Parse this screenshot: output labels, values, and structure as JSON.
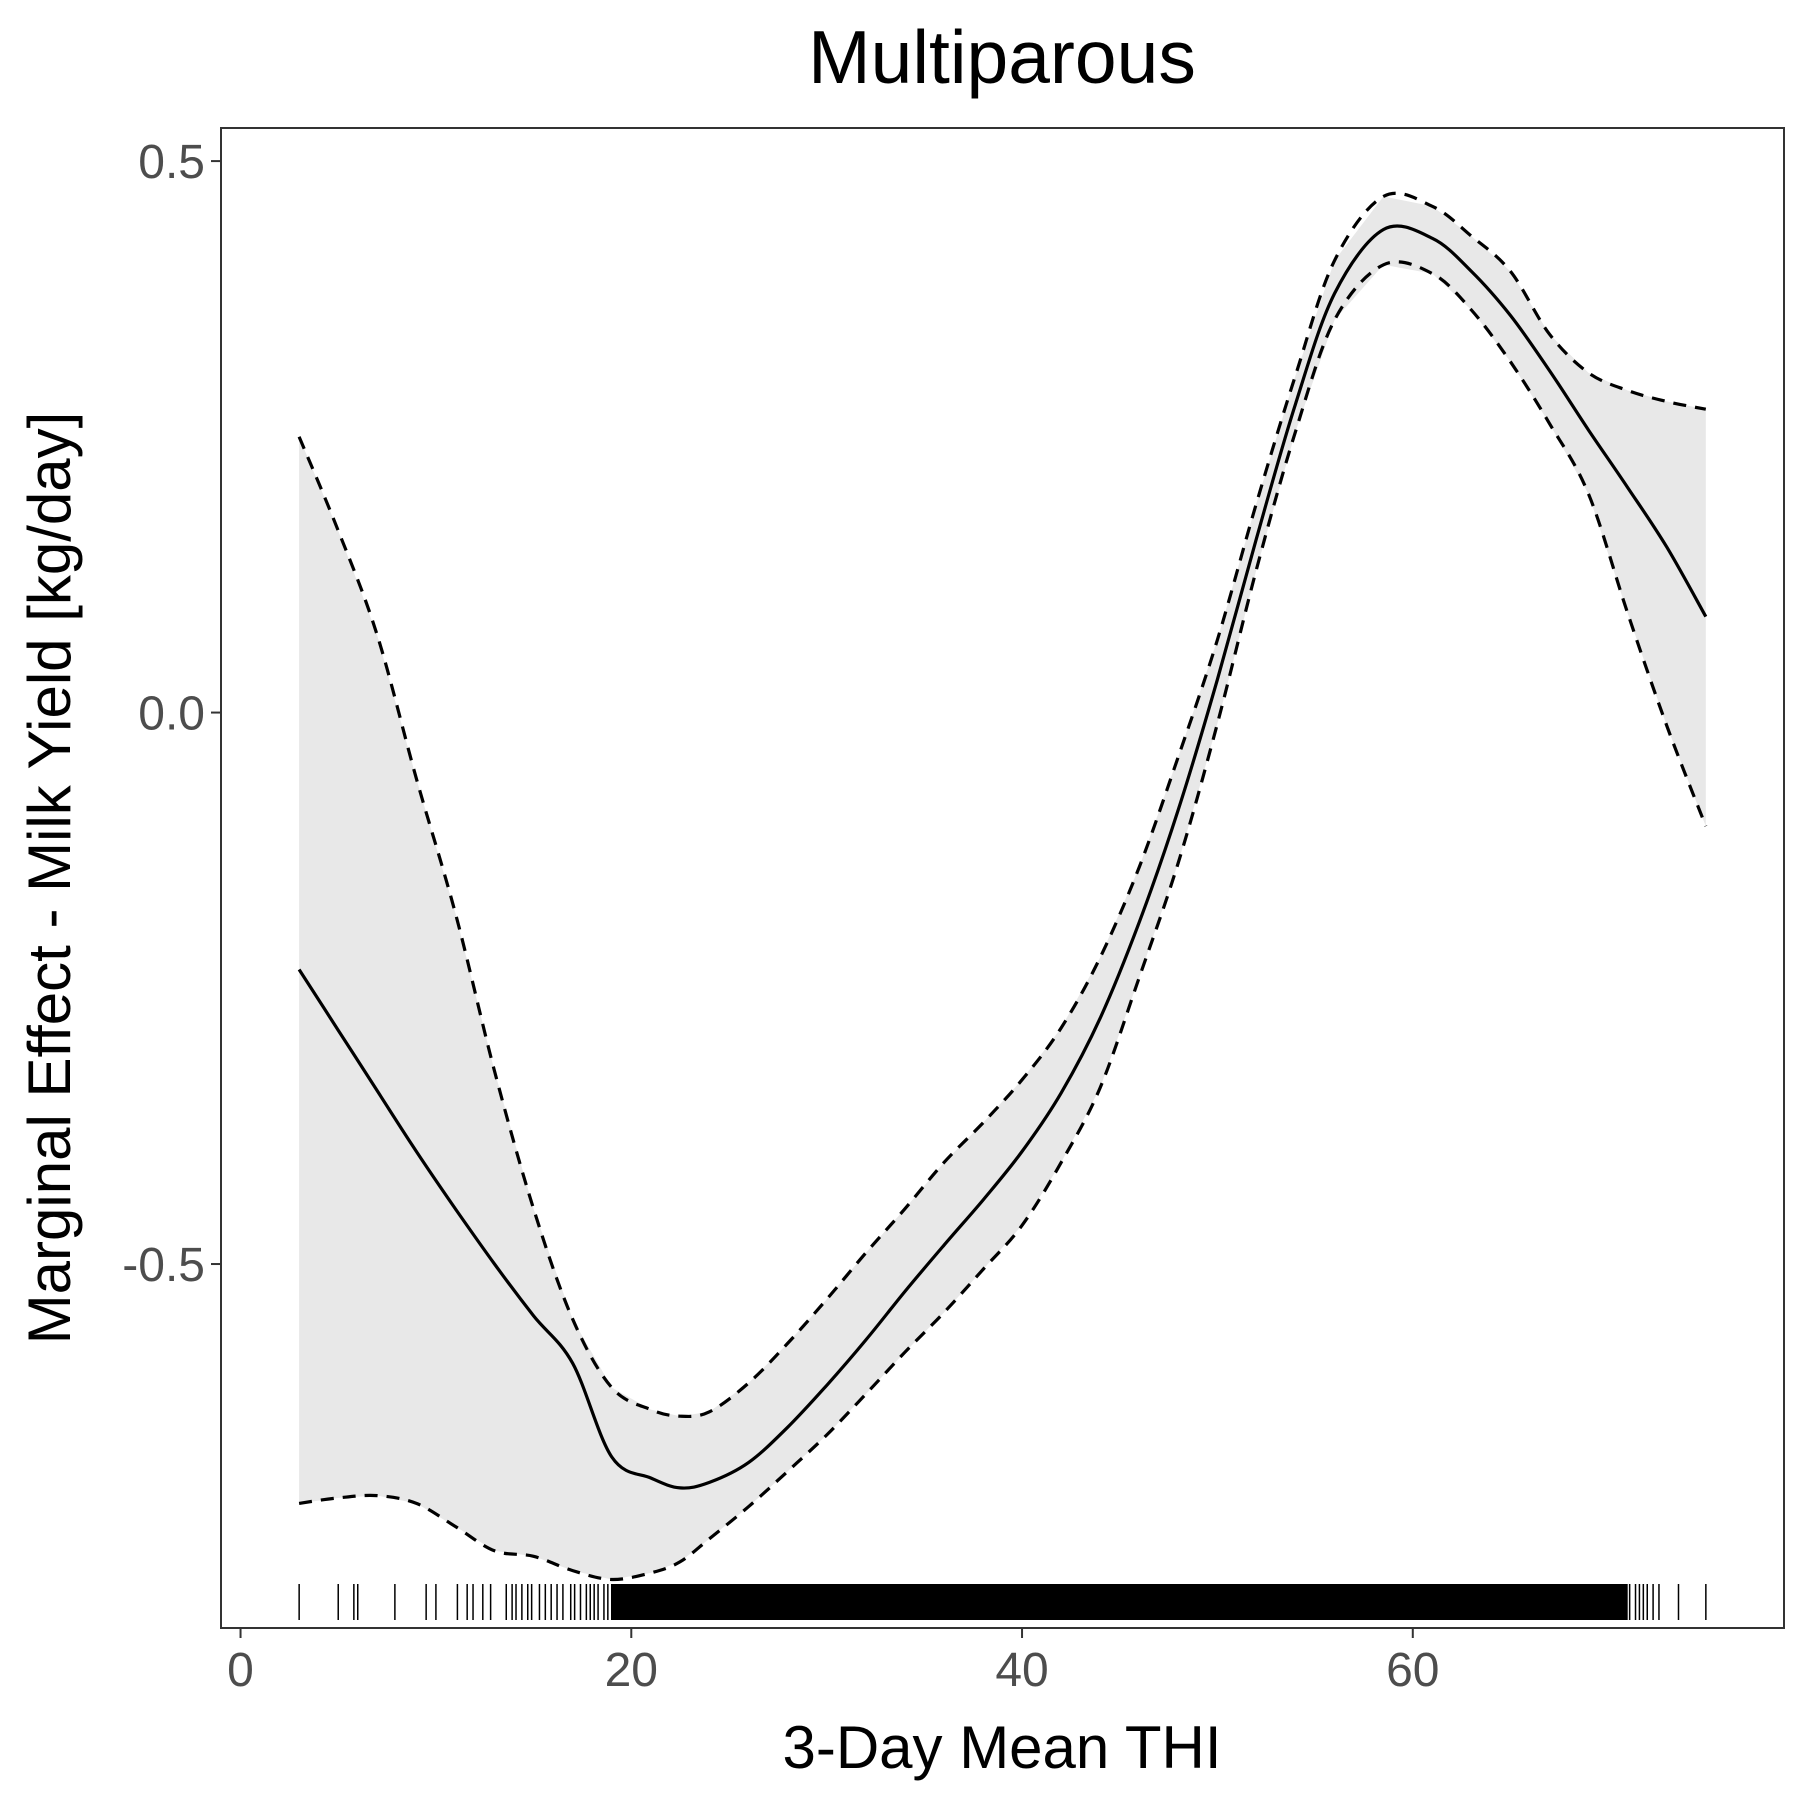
{
  "chart_data": {
    "type": "line",
    "title": "Multiparous",
    "xlabel": "3-Day Mean THI",
    "ylabel": "Marginal Effect - Milk Yield [kg/day]",
    "xlim": [
      -1.0,
      79.0
    ],
    "ylim": [
      -0.83,
      0.53
    ],
    "x_ticks": [
      0,
      20,
      40,
      60
    ],
    "x_tick_labels": [
      "0",
      "20",
      "40",
      "60"
    ],
    "y_ticks": [
      -0.5,
      0.0,
      0.5
    ],
    "y_tick_labels": [
      "-0.5",
      "0.0",
      "0.5"
    ],
    "grid": false,
    "legend": "none",
    "colors": {
      "line": "#000000",
      "ribbon": "#e8e8e8",
      "panel_border": "#333333",
      "tick_label": "#4d4d4d"
    },
    "x": [
      3,
      5,
      7,
      9,
      11,
      13,
      15,
      17,
      19,
      21,
      22.5,
      24,
      26,
      28,
      30,
      32,
      34,
      36,
      38,
      40,
      42,
      44,
      46,
      48,
      50,
      52,
      54,
      56,
      58.5,
      61,
      63,
      65,
      67,
      69,
      71,
      73,
      75
    ],
    "series": [
      {
        "role": "estimate",
        "style": "solid",
        "values": [
          -0.233,
          -0.288,
          -0.343,
          -0.398,
          -0.45,
          -0.5,
          -0.547,
          -0.59,
          -0.675,
          -0.694,
          -0.703,
          -0.698,
          -0.68,
          -0.648,
          -0.61,
          -0.569,
          -0.525,
          -0.483,
          -0.442,
          -0.398,
          -0.345,
          -0.277,
          -0.19,
          -0.088,
          0.03,
          0.158,
          0.28,
          0.38,
          0.438,
          0.43,
          0.4,
          0.36,
          0.31,
          0.256,
          0.204,
          0.15,
          0.087
        ]
      },
      {
        "role": "upper-ci",
        "style": "dashed",
        "values": [
          0.25,
          0.165,
          0.07,
          -0.06,
          -0.182,
          -0.325,
          -0.45,
          -0.55,
          -0.612,
          -0.632,
          -0.638,
          -0.634,
          -0.608,
          -0.572,
          -0.532,
          -0.49,
          -0.45,
          -0.408,
          -0.372,
          -0.333,
          -0.286,
          -0.222,
          -0.14,
          -0.04,
          0.066,
          0.19,
          0.306,
          0.41,
          0.468,
          0.459,
          0.432,
          0.4,
          0.343,
          0.308,
          0.292,
          0.282,
          0.275
        ]
      },
      {
        "role": "lower-ci",
        "style": "dashed",
        "values": [
          -0.717,
          -0.712,
          -0.71,
          -0.717,
          -0.738,
          -0.76,
          -0.765,
          -0.778,
          -0.786,
          -0.78,
          -0.77,
          -0.749,
          -0.72,
          -0.688,
          -0.655,
          -0.618,
          -0.58,
          -0.544,
          -0.505,
          -0.465,
          -0.408,
          -0.34,
          -0.24,
          -0.136,
          -0.01,
          0.13,
          0.255,
          0.356,
          0.406,
          0.398,
          0.365,
          0.318,
          0.262,
          0.198,
          0.09,
          -0.012,
          -0.103
        ]
      }
    ],
    "rug_x": [
      3,
      5,
      5.8,
      6,
      7.9,
      9.5,
      10,
      11.1,
      11.6,
      11.9,
      12.4,
      12.8,
      13.6,
      13.9,
      14.1,
      14.4,
      14.7,
      14.9,
      15.3,
      15.6,
      15.9,
      16.2,
      16.5,
      16.9,
      17.1,
      17.4,
      17.7,
      17.9,
      18.1,
      18.3,
      18.6,
      18.8,
      19,
      19.2,
      19.4,
      19.6,
      19.8,
      20.0,
      20.2,
      20.5,
      20.8,
      21.2,
      21.6,
      22,
      22.5,
      23,
      23.5,
      24,
      24.5,
      25,
      25.5,
      26,
      26.5,
      27,
      27.5,
      28,
      28.5,
      29,
      29.5,
      30,
      30.5,
      31,
      31.5,
      32,
      32.5,
      33,
      33.5,
      34,
      34.5,
      35,
      35.5,
      36,
      36.5,
      37,
      37.5,
      38,
      38.5,
      39,
      39.5,
      40,
      40.5,
      41,
      41.5,
      42,
      42.5,
      43,
      43.5,
      44,
      44.5,
      45,
      45.5,
      46,
      46.5,
      47,
      47.5,
      48,
      48.5,
      49,
      49.5,
      50,
      50.5,
      51,
      51.5,
      52,
      52.5,
      53,
      53.5,
      54,
      54.5,
      55,
      55.5,
      56,
      56.5,
      57,
      57.5,
      58,
      58.5,
      59,
      59.5,
      60,
      60.5,
      61,
      61.5,
      62,
      62.5,
      63,
      63.5,
      64,
      64.5,
      65,
      65.5,
      66,
      66.5,
      67,
      67.5,
      68,
      68.5,
      69,
      69.5,
      70,
      70.3,
      70.6,
      70.9,
      71.1,
      71.4,
      71.6,
      71.8,
      72,
      72.3,
      72.6,
      73.6,
      75
    ]
  }
}
